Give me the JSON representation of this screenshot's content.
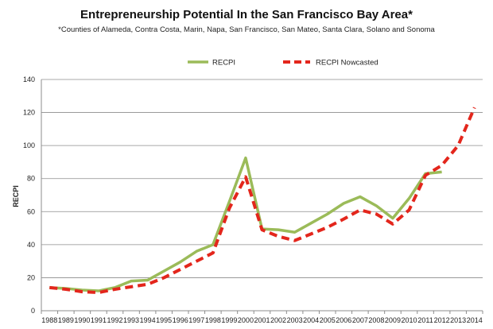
{
  "chart_data": {
    "type": "line",
    "title": "Entrepreneurship Potential In the San Francisco Bay Area*",
    "subtitle": "*Counties of Alameda, Contra Costa, Marin, Napa, San Francisco, San Mateo, Santa Clara, Solano and Sonoma",
    "xlabel": "",
    "ylabel": "RECPI",
    "ylim": [
      0,
      140
    ],
    "yticks": [
      0,
      20,
      40,
      60,
      80,
      100,
      120,
      140
    ],
    "grid": true,
    "legend_position": "top-right",
    "categories": [
      "1988",
      "1989",
      "1990",
      "1991",
      "1992",
      "1993",
      "1994",
      "1995",
      "1996",
      "1997",
      "1998",
      "1999",
      "2000",
      "2001",
      "2002",
      "2003",
      "2004",
      "2005",
      "2006",
      "2007",
      "2008",
      "2009",
      "2010",
      "2011",
      "2012",
      "2013",
      "2014"
    ],
    "series": [
      {
        "name": "RECPI",
        "color": "#9bbb59",
        "style": "solid",
        "values": [
          14,
          13.5,
          12.5,
          12,
          14,
          18,
          18.5,
          24,
          29.5,
          36,
          40,
          66,
          92.5,
          49.5,
          49,
          47.5,
          53,
          58.5,
          65,
          69,
          63.5,
          56,
          68,
          83,
          84,
          null,
          null
        ]
      },
      {
        "name": "RECPI Nowcasted",
        "color": "#e3261c",
        "style": "dashed",
        "values": [
          14,
          13,
          11.5,
          11,
          13,
          14.5,
          16,
          20,
          25,
          30,
          35,
          62,
          81,
          49,
          45,
          42.5,
          46.5,
          50.5,
          55.5,
          61,
          58.5,
          52.5,
          61,
          82,
          88,
          100,
          123
        ]
      }
    ]
  }
}
